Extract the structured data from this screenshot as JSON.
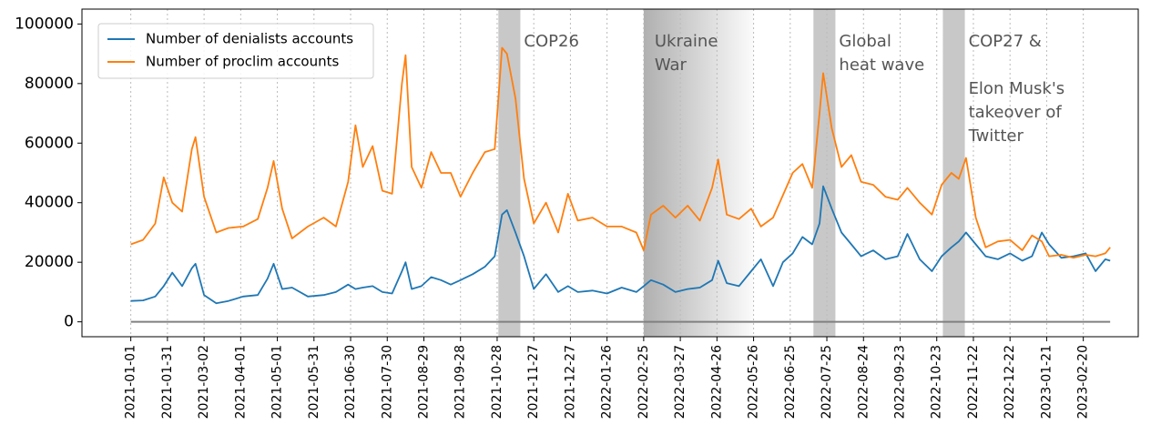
{
  "chart_data": {
    "type": "line",
    "x": [
      "2021-01-01",
      "2021-01-11",
      "2021-01-21",
      "2021-01-28",
      "2021-02-04",
      "2021-02-12",
      "2021-02-20",
      "2021-02-23",
      "2021-03-02",
      "2021-03-12",
      "2021-03-22",
      "2021-04-03",
      "2021-04-15",
      "2021-04-23",
      "2021-04-28",
      "2021-05-05",
      "2021-05-13",
      "2021-05-26",
      "2021-06-08",
      "2021-06-18",
      "2021-06-28",
      "2021-07-04",
      "2021-07-10",
      "2021-07-18",
      "2021-07-26",
      "2021-08-03",
      "2021-08-11",
      "2021-08-14",
      "2021-08-19",
      "2021-08-27",
      "2021-09-04",
      "2021-09-12",
      "2021-09-20",
      "2021-09-28",
      "2021-10-08",
      "2021-10-18",
      "2021-10-26",
      "2021-11-01",
      "2021-11-05",
      "2021-11-12",
      "2021-11-19",
      "2021-11-27",
      "2021-12-07",
      "2021-12-17",
      "2021-12-25",
      "2022-01-02",
      "2022-01-14",
      "2022-01-26",
      "2022-02-07",
      "2022-02-19",
      "2022-02-25",
      "2022-03-03",
      "2022-03-13",
      "2022-03-23",
      "2022-04-02",
      "2022-04-12",
      "2022-04-22",
      "2022-04-27",
      "2022-05-04",
      "2022-05-14",
      "2022-05-24",
      "2022-06-01",
      "2022-06-11",
      "2022-06-19",
      "2022-06-27",
      "2022-07-05",
      "2022-07-13",
      "2022-07-19",
      "2022-07-22",
      "2022-07-29",
      "2022-08-06",
      "2022-08-14",
      "2022-08-22",
      "2022-09-01",
      "2022-09-11",
      "2022-09-21",
      "2022-09-29",
      "2022-10-09",
      "2022-10-19",
      "2022-10-27",
      "2022-11-04",
      "2022-11-10",
      "2022-11-16",
      "2022-11-24",
      "2022-12-02",
      "2022-12-12",
      "2022-12-22",
      "2023-01-01",
      "2023-01-09",
      "2023-01-17",
      "2023-01-23",
      "2023-02-02",
      "2023-02-12",
      "2023-02-22",
      "2023-03-02",
      "2023-03-10",
      "2023-03-14"
    ],
    "series": [
      {
        "name": "Number of denialists accounts",
        "color": "#1f77b4",
        "values": [
          7000,
          7200,
          8500,
          12000,
          16500,
          12000,
          18000,
          19500,
          9000,
          6200,
          7000,
          8500,
          9000,
          14500,
          19500,
          11000,
          11500,
          8500,
          9000,
          10000,
          12500,
          11000,
          11500,
          12000,
          10000,
          9500,
          17000,
          20000,
          11000,
          12000,
          15000,
          14000,
          12500,
          14000,
          16000,
          18500,
          22000,
          36000,
          37500,
          30000,
          22000,
          11000,
          16000,
          10000,
          12000,
          10000,
          10500,
          9500,
          11500,
          10000,
          12000,
          14000,
          12500,
          10000,
          11000,
          11500,
          14000,
          20500,
          13000,
          12000,
          17000,
          21000,
          12000,
          20000,
          23000,
          28500,
          26000,
          33000,
          45500,
          38000,
          30000,
          26000,
          22000,
          24000,
          21000,
          22000,
          29500,
          21000,
          17000,
          22000,
          25000,
          27000,
          30000,
          26000,
          22000,
          21000,
          23000,
          20500,
          22000,
          30000,
          26000,
          21500,
          22000,
          23000,
          17000,
          21000,
          20500
        ]
      },
      {
        "name": "Number of proclim accounts",
        "color": "#ff7f0e",
        "values": [
          26000,
          27500,
          33000,
          48500,
          40000,
          37000,
          58000,
          62000,
          42000,
          30000,
          31500,
          32000,
          34500,
          45000,
          54000,
          38000,
          28000,
          32000,
          35000,
          32000,
          47000,
          66000,
          52000,
          59000,
          44000,
          43000,
          80000,
          89500,
          52000,
          45000,
          57000,
          50000,
          50000,
          42000,
          50000,
          57000,
          58000,
          92000,
          90000,
          75000,
          48000,
          33000,
          40000,
          30000,
          43000,
          34000,
          35000,
          32000,
          32000,
          30000,
          24000,
          36000,
          39000,
          35000,
          39000,
          34000,
          45000,
          54500,
          36000,
          34500,
          38000,
          32000,
          35000,
          42500,
          50000,
          53000,
          45000,
          70000,
          83500,
          65000,
          52000,
          56000,
          47000,
          46000,
          42000,
          41000,
          45000,
          40000,
          36000,
          46000,
          50000,
          48000,
          55000,
          35000,
          25000,
          27000,
          27500,
          24000,
          29000,
          27000,
          22000,
          22500,
          21500,
          22500,
          22000,
          23000,
          25000
        ]
      }
    ],
    "xlim": [
      "2020-11-22",
      "2023-04-06"
    ],
    "xticks": [
      "2021-01-01",
      "2021-01-31",
      "2021-03-02",
      "2021-04-01",
      "2021-05-01",
      "2021-05-31",
      "2021-06-30",
      "2021-07-30",
      "2021-08-29",
      "2021-09-28",
      "2021-10-28",
      "2021-11-27",
      "2021-12-27",
      "2022-01-26",
      "2022-02-25",
      "2022-03-27",
      "2022-04-26",
      "2022-05-26",
      "2022-06-25",
      "2022-07-25",
      "2022-08-24",
      "2022-09-23",
      "2022-10-23",
      "2022-11-22",
      "2022-12-22",
      "2023-01-21",
      "2023-02-20"
    ],
    "ylim": [
      -5000,
      105000
    ],
    "yticks": [
      0,
      20000,
      40000,
      60000,
      80000,
      100000
    ],
    "xgrid": true,
    "legend": "upper left",
    "events": [
      {
        "start": "2021-10-29",
        "end": "2021-11-16",
        "style": "solid",
        "label": [
          "COP26"
        ]
      },
      {
        "start": "2022-02-25",
        "end": "2022-05-26",
        "style": "gradient",
        "label": [
          "Ukraine",
          "War"
        ]
      },
      {
        "start": "2022-07-14",
        "end": "2022-08-01",
        "style": "solid",
        "label": [
          "Global",
          "heat wave"
        ]
      },
      {
        "start": "2022-10-28",
        "end": "2022-11-15",
        "style": "solid",
        "label": [
          "COP27 &",
          "",
          "Elon Musk's",
          "takeover of",
          "Twitter"
        ]
      }
    ]
  }
}
